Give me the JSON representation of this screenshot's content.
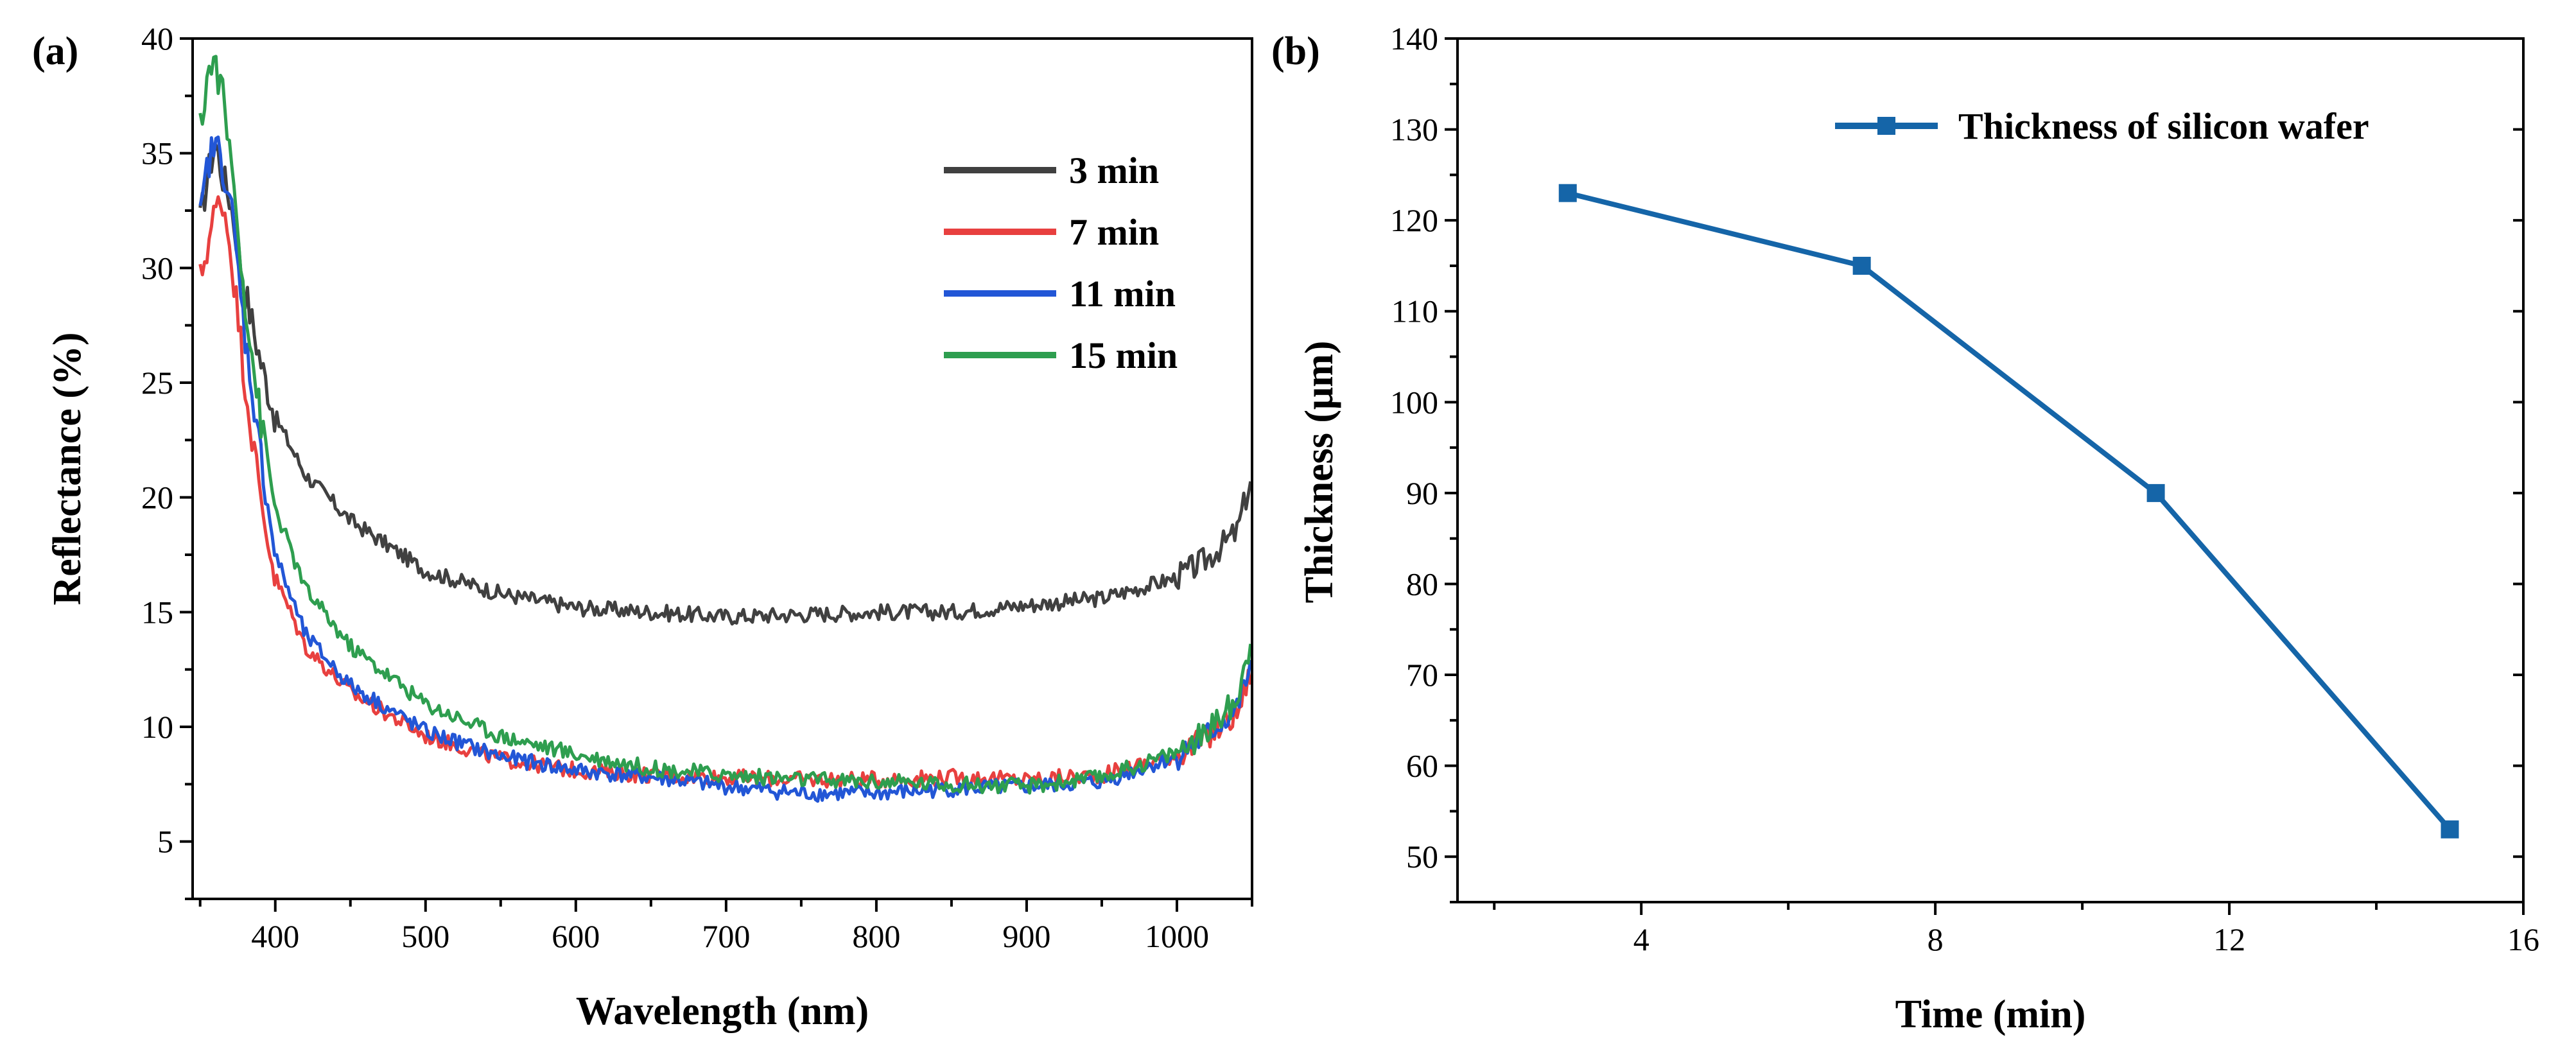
{
  "panels": {
    "a": "(a)",
    "b": "(b)"
  },
  "chart_data": [
    {
      "type": "line",
      "panel": "(a)",
      "title": "",
      "xlabel": "Wavelength (nm)",
      "ylabel": "Reflectance (%)",
      "xlim": [
        345,
        1050
      ],
      "ylim": [
        2.5,
        40
      ],
      "x_ticks": [
        400,
        500,
        600,
        700,
        800,
        900,
        1000
      ],
      "y_ticks": [
        5,
        10,
        15,
        20,
        25,
        30,
        35,
        40
      ],
      "legend_position": "top-right",
      "series": [
        {
          "name": "3 min",
          "color": "#404040",
          "x": [
            350,
            355,
            360,
            365,
            370,
            375,
            380,
            390,
            400,
            420,
            450,
            500,
            550,
            600,
            650,
            700,
            750,
            800,
            850,
            900,
            950,
            1000,
            1020,
            1040,
            1050
          ],
          "y": [
            32,
            34,
            35.5,
            34,
            33,
            31,
            29,
            26,
            23.5,
            21,
            19,
            16.8,
            15.8,
            15.2,
            15.0,
            14.8,
            14.9,
            15.0,
            15.0,
            15.3,
            15.6,
            16.5,
            17.3,
            18.5,
            21
          ]
        },
        {
          "name": "7 min",
          "color": "#e8403f",
          "x": [
            350,
            355,
            360,
            365,
            370,
            375,
            380,
            390,
            400,
            420,
            450,
            500,
            550,
            600,
            650,
            700,
            750,
            800,
            850,
            900,
            950,
            1000,
            1020,
            1040,
            1050
          ],
          "y": [
            29.5,
            31,
            32.5,
            33,
            31,
            28,
            25,
            20,
            16.5,
            13.5,
            11.5,
            9.6,
            8.6,
            8.1,
            7.9,
            7.8,
            7.7,
            7.7,
            7.8,
            7.7,
            7.9,
            8.8,
            9.5,
            10.6,
            12.5
          ]
        },
        {
          "name": "11 min",
          "color": "#2256d6",
          "x": [
            350,
            355,
            360,
            365,
            370,
            375,
            380,
            390,
            400,
            420,
            450,
            500,
            550,
            600,
            650,
            700,
            750,
            800,
            850,
            900,
            950,
            1000,
            1020,
            1040,
            1050
          ],
          "y": [
            32,
            34.5,
            35.5,
            34.5,
            33,
            30,
            27,
            22,
            17.5,
            14,
            11.8,
            9.8,
            8.7,
            8.1,
            7.8,
            7.4,
            7.1,
            7.1,
            7.3,
            7.4,
            7.6,
            8.7,
            9.6,
            10.8,
            12.8
          ]
        },
        {
          "name": "15 min",
          "color": "#2e9e4f",
          "x": [
            350,
            355,
            360,
            365,
            370,
            375,
            380,
            390,
            400,
            420,
            450,
            500,
            550,
            600,
            650,
            700,
            750,
            800,
            850,
            900,
            950,
            1000,
            1020,
            1040,
            1050
          ],
          "y": [
            36,
            38.5,
            39,
            37.5,
            35,
            32,
            28.5,
            23.5,
            19.5,
            16,
            13.5,
            11,
            9.6,
            8.8,
            8.2,
            7.9,
            7.7,
            7.6,
            7.5,
            7.4,
            7.8,
            8.9,
            9.8,
            11.2,
            14
          ]
        }
      ]
    },
    {
      "type": "line",
      "panel": "(b)",
      "title": "",
      "xlabel": "Time (min)",
      "ylabel": "Thickness (μm)",
      "xlim": [
        1.5,
        16
      ],
      "ylim": [
        45,
        140
      ],
      "x_ticks": [
        4,
        8,
        12,
        16
      ],
      "y_ticks": [
        50,
        60,
        70,
        80,
        90,
        100,
        110,
        120,
        130,
        140
      ],
      "legend_position": "top-right",
      "series": [
        {
          "name": "Thickness of silicon wafer",
          "color": "#1565a8",
          "marker": "square",
          "x": [
            3,
            7,
            11,
            15
          ],
          "y": [
            123,
            115,
            90,
            53
          ]
        }
      ]
    }
  ]
}
